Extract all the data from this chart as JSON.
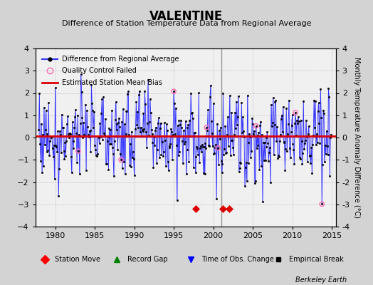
{
  "title": "VALENTINE",
  "subtitle": "Difference of Station Temperature Data from Regional Average",
  "ylabel_right": "Monthly Temperature Anomaly Difference (°C)",
  "xlim": [
    1977.5,
    2015.5
  ],
  "ylim": [
    -4,
    4
  ],
  "yticks": [
    -4,
    -3,
    -2,
    -1,
    0,
    1,
    2,
    3,
    4
  ],
  "xticks": [
    1980,
    1985,
    1990,
    1995,
    2000,
    2005,
    2010,
    2015
  ],
  "bias_line_y": 0.05,
  "station_move_times": [
    1997.75,
    2001.25,
    2002.0
  ],
  "vertical_line_times": [
    2001.0
  ],
  "bg_color": "#d3d3d3",
  "plot_bg_color": "#f0f0f0",
  "line_color": "#3333ff",
  "stem_color": "#8888ff",
  "bias_color": "#dd0000",
  "station_move_color": "#dd0000",
  "watermark": "Berkeley Earth",
  "legend_labels": [
    "Difference from Regional Average",
    "Quality Control Failed",
    "Estimated Station Mean Bias"
  ],
  "bottom_legend": [
    "Station Move",
    "Record Gap",
    "Time of Obs. Change",
    "Empirical Break"
  ]
}
